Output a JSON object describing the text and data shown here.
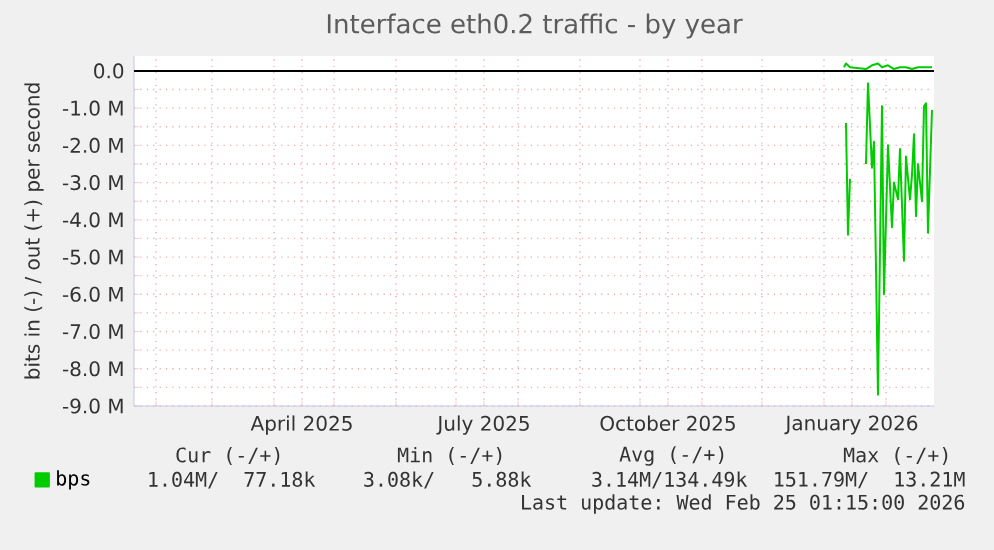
{
  "chart_data": {
    "type": "line",
    "title": "Interface eth0.2 traffic - by year",
    "ylabel": "bits in (-) / out (+) per second",
    "xlim": [
      "2025-01-21",
      "2026-02-25"
    ],
    "xticks": [
      {
        "value": "2025-02-01",
        "label": null
      },
      {
        "value": "2025-03-01",
        "label": null
      },
      {
        "value": "2025-04-01",
        "label": null
      },
      {
        "value": "2025-05-01",
        "label": null
      },
      {
        "value": "2025-06-01",
        "label": null
      },
      {
        "value": "2025-07-01",
        "label": null
      },
      {
        "value": "2025-08-01",
        "label": null
      },
      {
        "value": "2025-09-01",
        "label": null
      },
      {
        "value": "2025-10-01",
        "label": null
      },
      {
        "value": "2025-11-01",
        "label": null
      },
      {
        "value": "2025-12-01",
        "label": null
      },
      {
        "value": "2026-01-01",
        "label": null
      },
      {
        "value": "2026-02-01",
        "label": null
      },
      {
        "value": "2025-04-15",
        "label": "April 2025"
      },
      {
        "value": "2025-07-15",
        "label": "July 2025"
      },
      {
        "value": "2025-10-15",
        "label": "October 2025"
      },
      {
        "value": "2026-01-15",
        "label": "January 2026"
      }
    ],
    "ylim": [
      -9,
      0.4
    ],
    "yticks": [
      {
        "value": 0,
        "label": "0.0"
      },
      {
        "value": -1,
        "label": "-1.0 M"
      },
      {
        "value": -2,
        "label": "-2.0 M"
      },
      {
        "value": -3,
        "label": "-3.0 M"
      },
      {
        "value": -4,
        "label": "-4.0 M"
      },
      {
        "value": -5,
        "label": "-5.0 M"
      },
      {
        "value": -6,
        "label": "-6.0 M"
      },
      {
        "value": -7,
        "label": "-7.0 M"
      },
      {
        "value": -8,
        "label": "-8.0 M"
      },
      {
        "value": -9,
        "label": "-9.0 M"
      },
      {
        "value": -0.5,
        "label": null
      },
      {
        "value": -1.5,
        "label": null
      },
      {
        "value": -2.5,
        "label": null
      },
      {
        "value": -3.5,
        "label": null
      },
      {
        "value": -4.5,
        "label": null
      },
      {
        "value": -5.5,
        "label": null
      },
      {
        "value": -6.5,
        "label": null
      },
      {
        "value": -7.5,
        "label": null
      },
      {
        "value": -8.5,
        "label": null
      }
    ],
    "grid": true,
    "legend": "bottom left",
    "ref_lines": [
      {
        "axis": "y",
        "value": 0,
        "color": "#000000"
      }
    ],
    "series": [
      {
        "name": "bps",
        "color": "#00cc00",
        "x": [
          "2026-01-11",
          "2026-01-12",
          "2026-01-14",
          "2026-01-22",
          "2026-01-25",
          "2026-01-28",
          "2026-01-30",
          "2026-02-02",
          "2026-02-05",
          "2026-02-08",
          "2026-02-11",
          "2026-02-14",
          "2026-02-17",
          "2026-02-20",
          "2026-02-24"
        ],
        "values": [
          0.1,
          0.2,
          0.1,
          0.05,
          0.15,
          0.2,
          0.1,
          0.15,
          0.05,
          0.1,
          0.1,
          0.05,
          0.1,
          0.1,
          0.1
        ]
      },
      {
        "color": "#00cc00",
        "x": [
          "2026-01-12",
          "2026-01-13",
          "2026-01-14",
          "2026-01-18",
          "2026-01-22",
          "2026-01-23",
          "2026-01-25",
          "2026-01-26",
          "2026-01-28",
          "2026-01-30",
          "2026-01-31",
          "2026-02-02",
          "2026-02-04",
          "2026-02-05",
          "2026-02-07",
          "2026-02-08",
          "2026-02-10",
          "2026-02-11",
          "2026-02-13",
          "2026-02-14",
          "2026-02-15",
          "2026-02-16",
          "2026-02-17",
          "2026-02-19",
          "2026-02-20",
          "2026-02-21",
          "2026-02-22",
          "2026-02-24"
        ],
        "values": [
          -1.4,
          -4.4,
          -2.9,
          null,
          -2.5,
          -0.33,
          -2.6,
          -1.9,
          -8.7,
          -0.95,
          -6.0,
          -2.0,
          -4.2,
          -3.0,
          -3.45,
          -2.1,
          -5.1,
          -2.3,
          -3.45,
          -2.8,
          -1.7,
          -3.9,
          -2.5,
          -3.5,
          -0.95,
          -0.87,
          -4.35,
          -1.05
        ]
      }
    ],
    "annotations": [
      "Cur (-/+)",
      "Min (-/+)",
      "Avg (-/+)",
      "Max (-/+)",
      "1.04M/  77.18k",
      "3.08k/   5.88k",
      "3.14M/134.49k",
      "151.79M/  13.21M",
      "Last update: Wed Feb 25 01:15:00 2026"
    ]
  }
}
